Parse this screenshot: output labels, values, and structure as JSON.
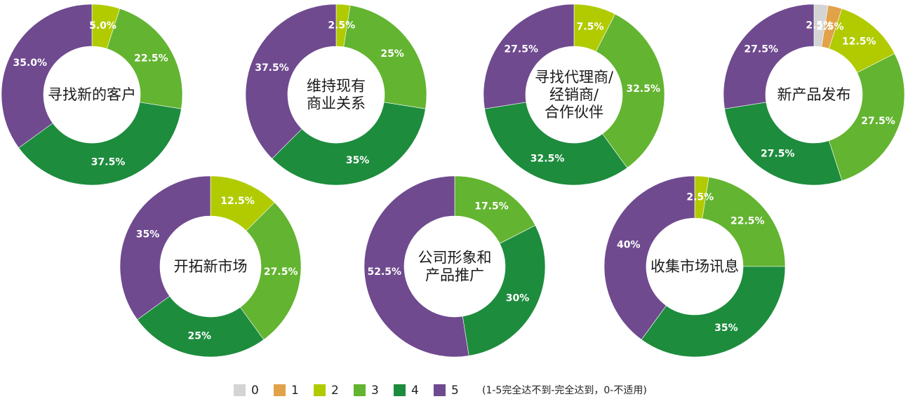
{
  "chart_data": {
    "type": "pie",
    "colors": {
      "0": "#d4d4d4",
      "1": "#e2a24a",
      "2": "#b1cb00",
      "3": "#63b430",
      "4": "#1d8c3d",
      "5": "#6f4a8f"
    },
    "legend": {
      "items": [
        {
          "key": "0",
          "label": "0"
        },
        {
          "key": "1",
          "label": "1"
        },
        {
          "key": "2",
          "label": "2"
        },
        {
          "key": "3",
          "label": "3"
        },
        {
          "key": "4",
          "label": "4"
        },
        {
          "key": "5",
          "label": "5"
        }
      ],
      "note": "(1-5完全达不到-完全达到，0-不适用)"
    },
    "charts": [
      {
        "id": "find-new-customers",
        "center_lines": [
          "寻找新的客户"
        ],
        "slices": [
          {
            "key": "2",
            "value": 5.0,
            "label": "5.0%"
          },
          {
            "key": "3",
            "value": 22.5,
            "label": "22.5%"
          },
          {
            "key": "4",
            "value": 37.5,
            "label": "37.5%"
          },
          {
            "key": "5",
            "value": 35.0,
            "label": "35.0%"
          }
        ]
      },
      {
        "id": "maintain-relations",
        "center_lines": [
          "维持现有",
          "商业关系"
        ],
        "slices": [
          {
            "key": "2",
            "value": 2.5,
            "label": "2.5%"
          },
          {
            "key": "3",
            "value": 25,
            "label": "25%"
          },
          {
            "key": "4",
            "value": 35,
            "label": "35%"
          },
          {
            "key": "5",
            "value": 37.5,
            "label": "37.5%"
          }
        ]
      },
      {
        "id": "find-agents",
        "center_lines": [
          "寻找代理商/",
          "经销商/",
          "合作伙伴"
        ],
        "slices": [
          {
            "key": "2",
            "value": 7.5,
            "label": "7.5%"
          },
          {
            "key": "3",
            "value": 32.5,
            "label": "32.5%"
          },
          {
            "key": "4",
            "value": 32.5,
            "label": "32.5%"
          },
          {
            "key": "5",
            "value": 27.5,
            "label": "27.5%"
          }
        ]
      },
      {
        "id": "new-product-launch",
        "center_lines": [
          "新产品发布"
        ],
        "slices": [
          {
            "key": "0",
            "value": 2.5,
            "label": "2.5%"
          },
          {
            "key": "1",
            "value": 2.5,
            "label": "2.5%"
          },
          {
            "key": "2",
            "value": 12.5,
            "label": "12.5%"
          },
          {
            "key": "3",
            "value": 27.5,
            "label": "27.5%"
          },
          {
            "key": "4",
            "value": 27.5,
            "label": "27.5%"
          },
          {
            "key": "5",
            "value": 27.5,
            "label": "27.5%"
          }
        ]
      },
      {
        "id": "open-new-markets",
        "center_lines": [
          "开拓新市场"
        ],
        "slices": [
          {
            "key": "2",
            "value": 12.5,
            "label": "12.5%"
          },
          {
            "key": "3",
            "value": 27.5,
            "label": "27.5%"
          },
          {
            "key": "4",
            "value": 25,
            "label": "25%"
          },
          {
            "key": "5",
            "value": 35,
            "label": "35%"
          }
        ]
      },
      {
        "id": "company-image",
        "center_lines": [
          "公司形象和",
          "产品推广"
        ],
        "slices": [
          {
            "key": "3",
            "value": 17.5,
            "label": "17.5%"
          },
          {
            "key": "4",
            "value": 30,
            "label": "30%"
          },
          {
            "key": "5",
            "value": 52.5,
            "label": "52.5%"
          }
        ]
      },
      {
        "id": "market-info",
        "center_lines": [
          "收集市场讯息"
        ],
        "slices": [
          {
            "key": "2",
            "value": 2.5,
            "label": "2.5%"
          },
          {
            "key": "3",
            "value": 22.5,
            "label": "22.5%"
          },
          {
            "key": "4",
            "value": 35,
            "label": "35%"
          },
          {
            "key": "5",
            "value": 40,
            "label": "40%"
          }
        ]
      }
    ]
  }
}
